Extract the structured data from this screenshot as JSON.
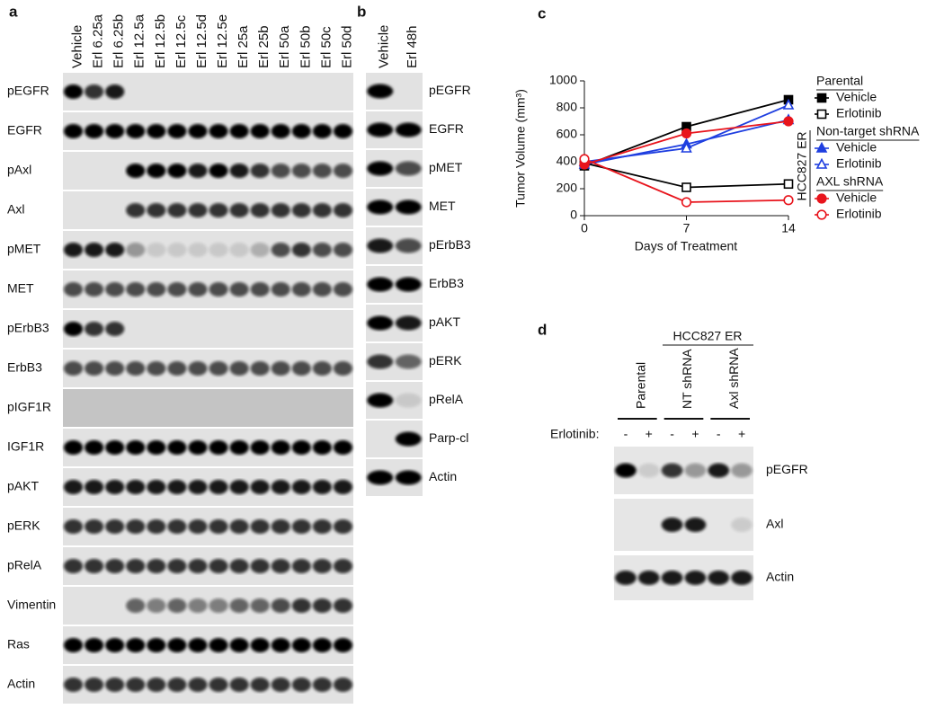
{
  "panel_a": {
    "label": "a",
    "lanes": [
      "Vehicle",
      "Erl 6.25a",
      "Erl 6.25b",
      "Erl 12.5a",
      "Erl 12.5b",
      "Erl 12.5c",
      "Erl 12.5d",
      "Erl 12.5e",
      "Erl 25a",
      "Erl 25b",
      "Erl 50a",
      "Erl 50b",
      "Erl 50c",
      "Erl 50d"
    ],
    "rows": [
      "pEGFR",
      "EGFR",
      "pAxl",
      "Axl",
      "pMET",
      "MET",
      "pErbB3",
      "ErbB3",
      "pIGF1R",
      "IGF1R",
      "pAKT",
      "pERK",
      "pRelA",
      "Vimentin",
      "Ras",
      "Actin"
    ]
  },
  "panel_b": {
    "label": "b",
    "lanes": [
      "Vehicle",
      "Erl 48h"
    ],
    "rows": [
      "pEGFR",
      "EGFR",
      "pMET",
      "MET",
      "pErbB3",
      "ErbB3",
      "pAKT",
      "pERK",
      "pRelA",
      "Parp-cl",
      "Actin"
    ]
  },
  "chart_data": {
    "type": "line",
    "panel_label": "c",
    "x_label": "Days of Treatment",
    "y_label": "Tumor Volume (mm³)",
    "x": [
      0,
      7,
      14
    ],
    "xlim": [
      0,
      14
    ],
    "xticks": [
      0,
      7,
      14
    ],
    "ylim": [
      0,
      1000
    ],
    "yticks": [
      0,
      200,
      400,
      600,
      800,
      1000
    ],
    "side_label": "HCC827 ER",
    "groups": [
      "Parental",
      "Non-target shRNA",
      "AXL shRNA"
    ],
    "series": [
      {
        "name": "Vehicle",
        "group": 0,
        "color": "#000000",
        "marker": "square",
        "filled": true,
        "values": [
          370,
          660,
          860
        ]
      },
      {
        "name": "Erlotinib",
        "group": 0,
        "color": "#000000",
        "marker": "square",
        "filled": false,
        "values": [
          390,
          210,
          235
        ]
      },
      {
        "name": "Vehicle",
        "group": 1,
        "color": "#1f3fe0",
        "marker": "triangle",
        "filled": true,
        "values": [
          380,
          530,
          710
        ]
      },
      {
        "name": "Erlotinib",
        "group": 1,
        "color": "#1f3fe0",
        "marker": "triangle",
        "filled": false,
        "values": [
          400,
          500,
          820
        ]
      },
      {
        "name": "Vehicle",
        "group": 2,
        "color": "#e8141c",
        "marker": "circle",
        "filled": true,
        "values": [
          380,
          610,
          700
        ]
      },
      {
        "name": "Erlotinib",
        "group": 2,
        "color": "#e8141c",
        "marker": "circle",
        "filled": false,
        "values": [
          420,
          100,
          115
        ]
      }
    ]
  },
  "panel_d": {
    "label": "d",
    "header": "HCC827 ER",
    "lanes": [
      "Parental",
      "NT shRNA",
      "Axl shRNA"
    ],
    "treatment_label": "Erlotinib:",
    "treatment_signs": [
      "-",
      "+",
      "-",
      "+",
      "-",
      "+"
    ],
    "rows": [
      "pEGFR",
      "Axl",
      "Actin"
    ]
  }
}
